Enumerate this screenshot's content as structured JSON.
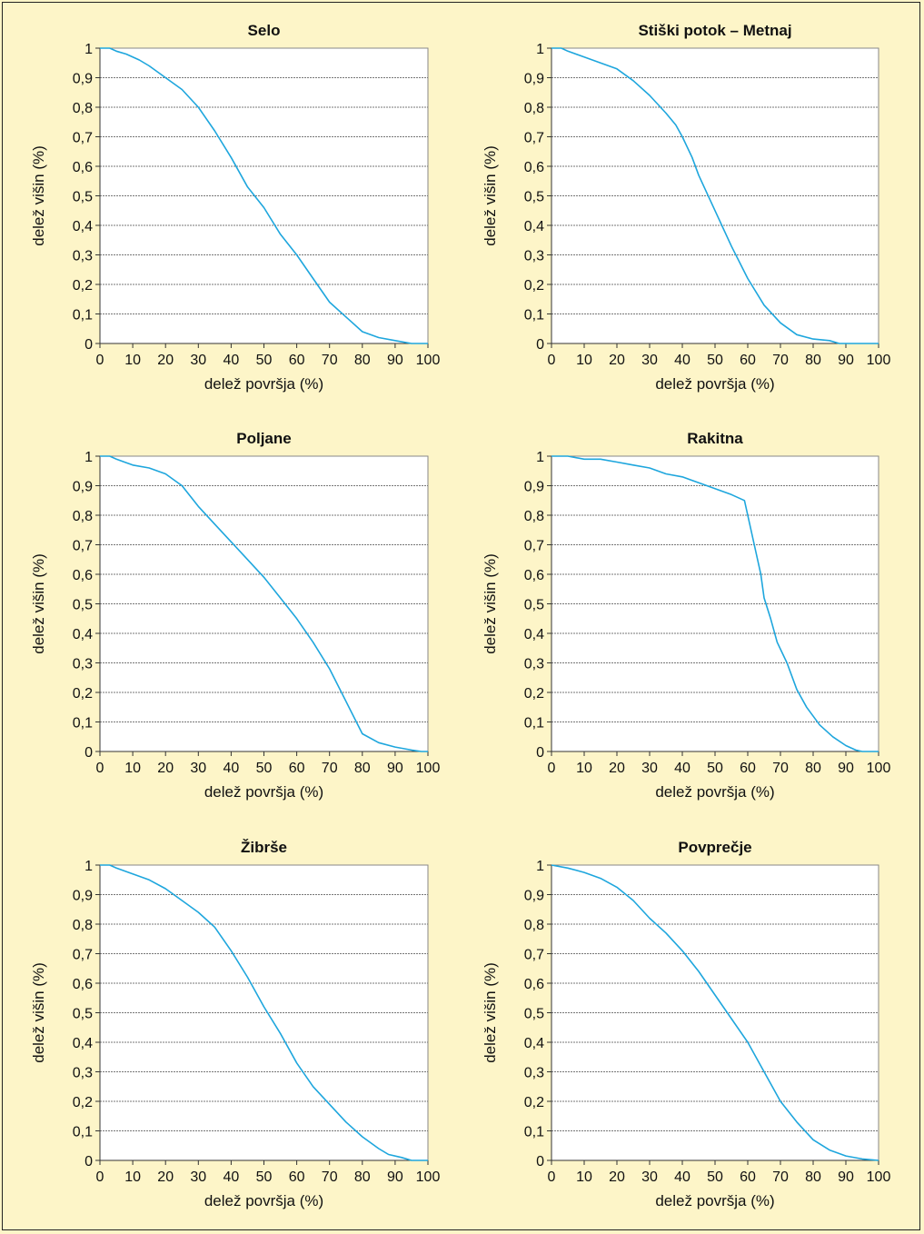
{
  "chart_data": [
    {
      "type": "line",
      "title": "Selo",
      "xlabel": "delež površja (%)",
      "ylabel": "delež višin (%)",
      "xlim": [
        0,
        100
      ],
      "ylim": [
        0,
        1
      ],
      "x_ticks": [
        "0",
        "10",
        "20",
        "30",
        "40",
        "50",
        "60",
        "70",
        "80",
        "90",
        "100"
      ],
      "y_ticks": [
        "0",
        "0,1",
        "0,2",
        "0,3",
        "0,4",
        "0,5",
        "0,6",
        "0,7",
        "0,8",
        "0,9",
        "1"
      ],
      "grid": "horizontal",
      "series": [
        {
          "values": [
            [
              0,
              1
            ],
            [
              3,
              1
            ],
            [
              5,
              0.99
            ],
            [
              8,
              0.98
            ],
            [
              12,
              0.96
            ],
            [
              15,
              0.94
            ],
            [
              20,
              0.9
            ],
            [
              25,
              0.86
            ],
            [
              30,
              0.8
            ],
            [
              35,
              0.72
            ],
            [
              40,
              0.63
            ],
            [
              45,
              0.53
            ],
            [
              50,
              0.46
            ],
            [
              55,
              0.37
            ],
            [
              60,
              0.3
            ],
            [
              65,
              0.22
            ],
            [
              70,
              0.14
            ],
            [
              75,
              0.09
            ],
            [
              80,
              0.04
            ],
            [
              85,
              0.02
            ],
            [
              90,
              0.01
            ],
            [
              95,
              0
            ],
            [
              100,
              0
            ]
          ]
        }
      ]
    },
    {
      "type": "line",
      "title": "Stiški potok – Metnaj",
      "xlabel": "delež površja (%)",
      "ylabel": "delež višin (%)",
      "xlim": [
        0,
        100
      ],
      "ylim": [
        0,
        1
      ],
      "x_ticks": [
        "0",
        "10",
        "20",
        "30",
        "40",
        "50",
        "60",
        "70",
        "80",
        "90",
        "100"
      ],
      "y_ticks": [
        "0",
        "0,1",
        "0,2",
        "0,3",
        "0,4",
        "0,5",
        "0,6",
        "0,7",
        "0,8",
        "0,9",
        "1"
      ],
      "grid": "horizontal",
      "series": [
        {
          "values": [
            [
              0,
              1
            ],
            [
              3,
              1
            ],
            [
              5,
              0.99
            ],
            [
              10,
              0.97
            ],
            [
              15,
              0.95
            ],
            [
              20,
              0.93
            ],
            [
              25,
              0.89
            ],
            [
              30,
              0.84
            ],
            [
              35,
              0.78
            ],
            [
              38,
              0.74
            ],
            [
              40,
              0.7
            ],
            [
              43,
              0.63
            ],
            [
              45,
              0.57
            ],
            [
              50,
              0.45
            ],
            [
              55,
              0.33
            ],
            [
              60,
              0.22
            ],
            [
              65,
              0.13
            ],
            [
              70,
              0.07
            ],
            [
              75,
              0.03
            ],
            [
              80,
              0.015
            ],
            [
              85,
              0.01
            ],
            [
              88,
              0
            ],
            [
              100,
              0
            ]
          ]
        }
      ]
    },
    {
      "type": "line",
      "title": "Poljane",
      "xlabel": "delež površja (%)",
      "ylabel": "delež višin (%)",
      "xlim": [
        0,
        100
      ],
      "ylim": [
        0,
        1
      ],
      "x_ticks": [
        "0",
        "10",
        "20",
        "30",
        "40",
        "50",
        "60",
        "70",
        "80",
        "90",
        "100"
      ],
      "y_ticks": [
        "0",
        "0,1",
        "0,2",
        "0,3",
        "0,4",
        "0,5",
        "0,6",
        "0,7",
        "0,8",
        "0,9",
        "1"
      ],
      "grid": "horizontal",
      "series": [
        {
          "values": [
            [
              0,
              1
            ],
            [
              3,
              1
            ],
            [
              5,
              0.99
            ],
            [
              10,
              0.97
            ],
            [
              15,
              0.96
            ],
            [
              20,
              0.94
            ],
            [
              25,
              0.9
            ],
            [
              30,
              0.83
            ],
            [
              35,
              0.77
            ],
            [
              40,
              0.71
            ],
            [
              45,
              0.65
            ],
            [
              50,
              0.59
            ],
            [
              55,
              0.52
            ],
            [
              60,
              0.45
            ],
            [
              65,
              0.37
            ],
            [
              70,
              0.28
            ],
            [
              75,
              0.17
            ],
            [
              80,
              0.06
            ],
            [
              85,
              0.03
            ],
            [
              90,
              0.015
            ],
            [
              95,
              0.005
            ],
            [
              98,
              0
            ],
            [
              100,
              0
            ]
          ]
        }
      ]
    },
    {
      "type": "line",
      "title": "Rakitna",
      "xlabel": "delež površja (%)",
      "ylabel": "delež višin (%)",
      "xlim": [
        0,
        100
      ],
      "ylim": [
        0,
        1
      ],
      "x_ticks": [
        "0",
        "10",
        "20",
        "30",
        "40",
        "50",
        "60",
        "70",
        "80",
        "90",
        "100"
      ],
      "y_ticks": [
        "0",
        "0,1",
        "0,2",
        "0,3",
        "0,4",
        "0,5",
        "0,6",
        "0,7",
        "0,8",
        "0,9",
        "1"
      ],
      "grid": "horizontal",
      "series": [
        {
          "values": [
            [
              0,
              1
            ],
            [
              5,
              1
            ],
            [
              10,
              0.99
            ],
            [
              15,
              0.99
            ],
            [
              20,
              0.98
            ],
            [
              25,
              0.97
            ],
            [
              30,
              0.96
            ],
            [
              35,
              0.94
            ],
            [
              40,
              0.93
            ],
            [
              45,
              0.91
            ],
            [
              50,
              0.89
            ],
            [
              55,
              0.87
            ],
            [
              59,
              0.85
            ],
            [
              60,
              0.8
            ],
            [
              62,
              0.7
            ],
            [
              64,
              0.6
            ],
            [
              65,
              0.52
            ],
            [
              67,
              0.45
            ],
            [
              69,
              0.37
            ],
            [
              72,
              0.3
            ],
            [
              75,
              0.21
            ],
            [
              78,
              0.15
            ],
            [
              82,
              0.09
            ],
            [
              86,
              0.05
            ],
            [
              90,
              0.02
            ],
            [
              93,
              0.005
            ],
            [
              95,
              0
            ],
            [
              100,
              0
            ]
          ]
        }
      ]
    },
    {
      "type": "line",
      "title": "Žibrše",
      "xlabel": "delež površja (%)",
      "ylabel": "delež višin (%)",
      "xlim": [
        0,
        100
      ],
      "ylim": [
        0,
        1
      ],
      "x_ticks": [
        "0",
        "10",
        "20",
        "30",
        "40",
        "50",
        "60",
        "70",
        "80",
        "90",
        "100"
      ],
      "y_ticks": [
        "0",
        "0,1",
        "0,2",
        "0,3",
        "0,4",
        "0,5",
        "0,6",
        "0,7",
        "0,8",
        "0,9",
        "1"
      ],
      "grid": "horizontal",
      "series": [
        {
          "values": [
            [
              0,
              1
            ],
            [
              3,
              1
            ],
            [
              5,
              0.99
            ],
            [
              10,
              0.97
            ],
            [
              15,
              0.95
            ],
            [
              20,
              0.92
            ],
            [
              25,
              0.88
            ],
            [
              30,
              0.84
            ],
            [
              35,
              0.79
            ],
            [
              40,
              0.71
            ],
            [
              45,
              0.62
            ],
            [
              50,
              0.52
            ],
            [
              55,
              0.43
            ],
            [
              60,
              0.33
            ],
            [
              65,
              0.25
            ],
            [
              70,
              0.19
            ],
            [
              75,
              0.13
            ],
            [
              80,
              0.08
            ],
            [
              85,
              0.04
            ],
            [
              88,
              0.02
            ],
            [
              92,
              0.01
            ],
            [
              95,
              0
            ],
            [
              100,
              0
            ]
          ]
        }
      ]
    },
    {
      "type": "line",
      "title": "Povprečje",
      "xlabel": "delež površja (%)",
      "ylabel": "delež višin (%)",
      "xlim": [
        0,
        100
      ],
      "ylim": [
        0,
        1
      ],
      "x_ticks": [
        "0",
        "10",
        "20",
        "30",
        "40",
        "50",
        "60",
        "70",
        "80",
        "90",
        "100"
      ],
      "y_ticks": [
        "0",
        "0,1",
        "0,2",
        "0,3",
        "0,4",
        "0,5",
        "0,6",
        "0,7",
        "0,8",
        "0,9",
        "1"
      ],
      "grid": "horizontal",
      "series": [
        {
          "values": [
            [
              0,
              1
            ],
            [
              5,
              0.99
            ],
            [
              10,
              0.975
            ],
            [
              15,
              0.955
            ],
            [
              20,
              0.925
            ],
            [
              25,
              0.88
            ],
            [
              30,
              0.82
            ],
            [
              35,
              0.77
            ],
            [
              40,
              0.71
            ],
            [
              45,
              0.64
            ],
            [
              50,
              0.56
            ],
            [
              55,
              0.48
            ],
            [
              60,
              0.4
            ],
            [
              65,
              0.3
            ],
            [
              70,
              0.2
            ],
            [
              75,
              0.13
            ],
            [
              80,
              0.07
            ],
            [
              85,
              0.035
            ],
            [
              90,
              0.015
            ],
            [
              95,
              0.005
            ],
            [
              100,
              0
            ]
          ]
        }
      ]
    }
  ]
}
